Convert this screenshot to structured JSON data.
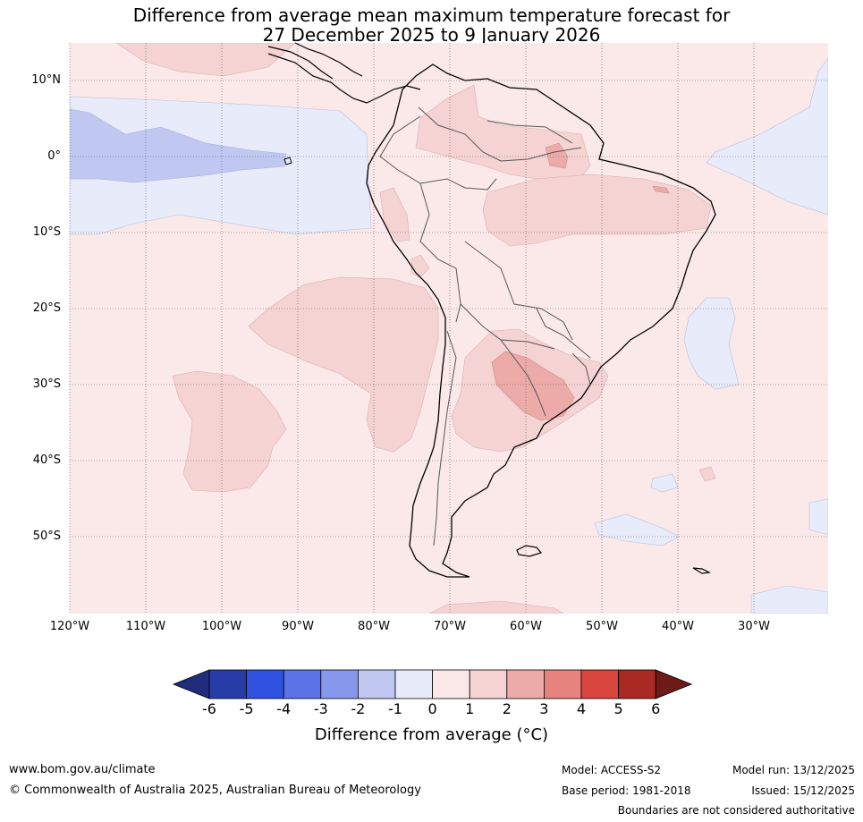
{
  "title_line1": "Difference from average mean maximum temperature forecast for",
  "title_line2": "27 December 2025 to 9 January 2026",
  "lat_labels": [
    "10°N",
    "0°",
    "10°S",
    "20°S",
    "30°S",
    "40°S",
    "50°S"
  ],
  "lon_labels": [
    "120°W",
    "110°W",
    "100°W",
    "90°W",
    "80°W",
    "70°W",
    "60°W",
    "50°W",
    "40°W",
    "30°W"
  ],
  "colorbar": {
    "ticks": [
      "-6",
      "-5",
      "-4",
      "-3",
      "-2",
      "-1",
      "0",
      "1",
      "2",
      "3",
      "4",
      "5",
      "6"
    ],
    "colors": [
      "#1f2d7a",
      "#283ca8",
      "#2f52e0",
      "#5b73e6",
      "#8798ec",
      "#c0c8f2",
      "#e8ebfa",
      "#fbe9e9",
      "#f5d3d2",
      "#ecaba9",
      "#e6837d",
      "#d8463d",
      "#a82a22",
      "#6e1a16"
    ],
    "label": "Difference from average (°C)"
  },
  "footer": {
    "website": "www.bom.gov.au/climate",
    "copyright": "© Commonwealth of Australia 2025, Australian Bureau of Meteorology",
    "model": "Model: ACCESS-S2",
    "base_period": "Base period: 1981-2018",
    "model_run": "Model run: 13/12/2025",
    "issued": "Issued: 15/12/2025",
    "disclaimer": "Boundaries are not considered authoritative"
  }
}
